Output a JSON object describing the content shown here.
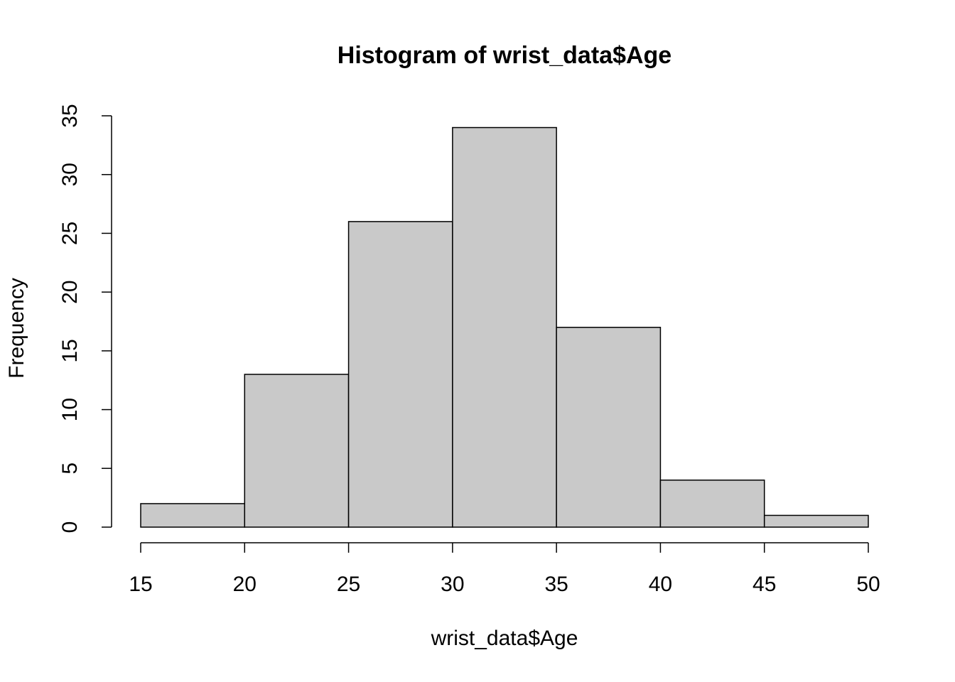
{
  "chart_data": {
    "type": "histogram",
    "title": "Histogram of wrist_data$Age",
    "x_label": "wrist_data$Age",
    "y_label": "Frequency",
    "bins": [
      15,
      20,
      25,
      30,
      35,
      40,
      45,
      50
    ],
    "values": [
      2,
      13,
      26,
      34,
      17,
      4,
      1
    ],
    "color": "#c9c9c9",
    "xlim": [
      15,
      50
    ],
    "xticks": [
      15,
      20,
      25,
      30,
      35,
      40,
      45,
      50
    ],
    "ylim": [
      0,
      35
    ],
    "yticks": [
      0,
      5,
      10,
      15,
      20,
      25,
      30,
      35
    ]
  }
}
